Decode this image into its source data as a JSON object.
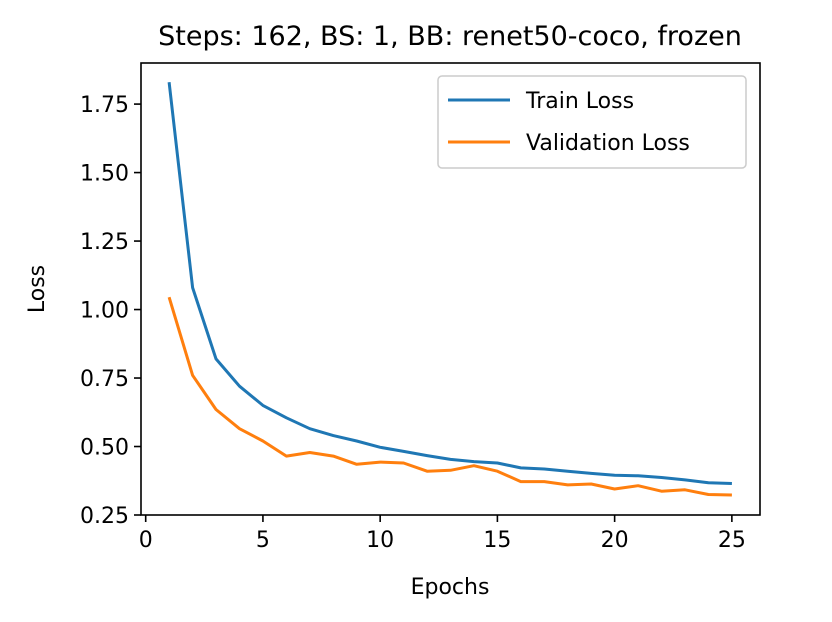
{
  "chart_data": {
    "type": "line",
    "title": "Steps: 162, BS: 1, BB: renet50-coco, frozen",
    "xlabel": "Epochs",
    "ylabel": "Loss",
    "xlim": [
      -0.2,
      26.2
    ],
    "ylim": [
      0.25,
      1.9
    ],
    "xticks": [
      0,
      5,
      10,
      15,
      20,
      25
    ],
    "xtick_labels": [
      "0",
      "5",
      "10",
      "15",
      "20",
      "25"
    ],
    "yticks": [
      0.25,
      0.5,
      0.75,
      1.0,
      1.25,
      1.5,
      1.75
    ],
    "ytick_labels": [
      "0.25",
      "0.50",
      "0.75",
      "1.00",
      "1.25",
      "1.50",
      "1.75"
    ],
    "grid": false,
    "legend_position": "top-right",
    "x": [
      1,
      2,
      3,
      4,
      5,
      6,
      7,
      8,
      9,
      10,
      11,
      12,
      13,
      14,
      15,
      16,
      17,
      18,
      19,
      20,
      21,
      22,
      23,
      24,
      25
    ],
    "series": [
      {
        "name": "Train Loss",
        "color": "#1f77b4",
        "values": [
          1.83,
          1.08,
          0.82,
          0.72,
          0.65,
          0.605,
          0.565,
          0.54,
          0.52,
          0.497,
          0.482,
          0.467,
          0.453,
          0.445,
          0.44,
          0.422,
          0.418,
          0.41,
          0.402,
          0.395,
          0.393,
          0.387,
          0.378,
          0.368,
          0.365
        ]
      },
      {
        "name": "Validation Loss",
        "color": "#ff7f0e",
        "values": [
          1.045,
          0.76,
          0.635,
          0.565,
          0.52,
          0.465,
          0.478,
          0.465,
          0.435,
          0.443,
          0.44,
          0.41,
          0.413,
          0.43,
          0.41,
          0.372,
          0.372,
          0.36,
          0.363,
          0.345,
          0.357,
          0.337,
          0.342,
          0.325,
          0.323
        ]
      }
    ]
  }
}
